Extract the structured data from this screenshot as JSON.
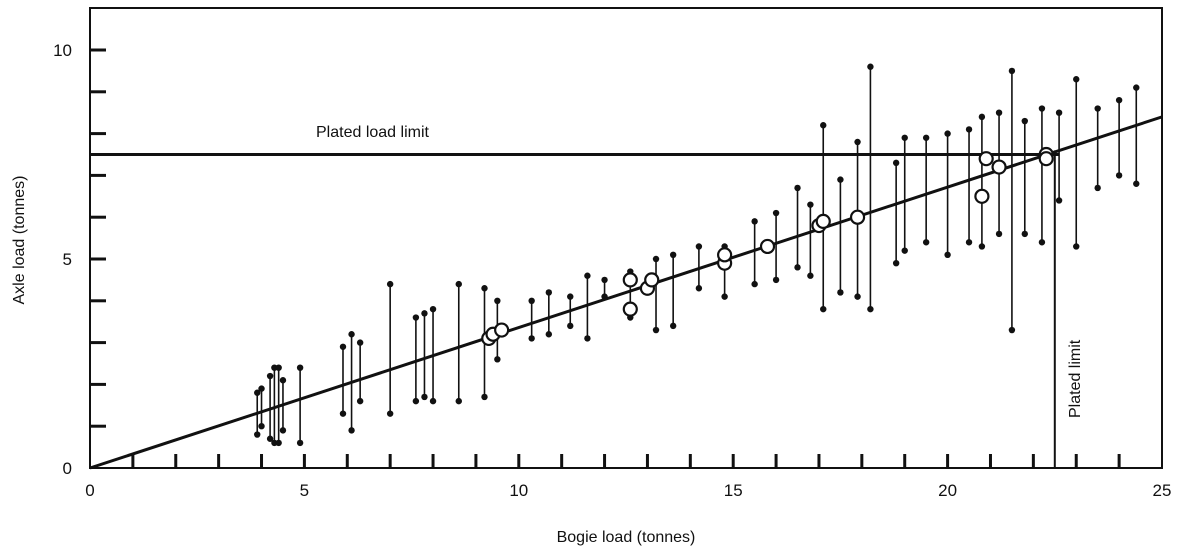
{
  "chart_data": {
    "type": "scatter",
    "title": "",
    "xlabel": "Bogie load (tonnes)",
    "ylabel": "Axle load (tonnes)",
    "xlim": [
      0,
      25
    ],
    "ylim": [
      0,
      10.5
    ],
    "x_tick_labels": [
      "0",
      "5",
      "10",
      "15",
      "20",
      "25"
    ],
    "y_tick_labels": [
      "0",
      "5",
      "10"
    ],
    "grid": false,
    "legend": "none",
    "annotations": {
      "plated_load_limit": {
        "text": "Plated load limit",
        "y": 7.5
      },
      "plated_limit": {
        "text": "Plated limit",
        "x": 22.5
      }
    },
    "trend_line": {
      "x": [
        0,
        25
      ],
      "y": [
        0,
        8.4
      ]
    },
    "series": [
      {
        "kind": "error-bars",
        "x": [
          3.9,
          4.0,
          4.2,
          4.3,
          4.4,
          4.5,
          4.9,
          5.9,
          6.1,
          6.3,
          7.0,
          7.6,
          7.8,
          8.0,
          8.6,
          9.2,
          9.5,
          10.3,
          10.7,
          11.2,
          11.6,
          12.0,
          12.6,
          13.2,
          13.6,
          14.2,
          14.8,
          15.5,
          16.0,
          16.5,
          16.8,
          17.1,
          17.5,
          17.9,
          18.2,
          18.8,
          19.0,
          19.5,
          20.0,
          20.5,
          20.8,
          21.2,
          21.5,
          21.8,
          22.2,
          22.6,
          23.0,
          23.5,
          24.0,
          24.4
        ],
        "lo": [
          0.8,
          1.0,
          0.7,
          0.6,
          0.6,
          0.9,
          0.6,
          1.3,
          0.9,
          1.6,
          1.3,
          1.6,
          1.7,
          1.6,
          1.6,
          1.7,
          2.6,
          3.1,
          3.2,
          3.4,
          3.1,
          4.1,
          3.6,
          3.3,
          3.4,
          4.3,
          4.1,
          4.4,
          4.5,
          4.8,
          4.6,
          3.8,
          4.2,
          4.1,
          3.8,
          4.9,
          5.2,
          5.4,
          5.1,
          5.4,
          5.3,
          5.6,
          3.3,
          5.6,
          5.4,
          6.4,
          5.3,
          6.7,
          7.0,
          6.8
        ],
        "hi": [
          1.8,
          1.9,
          2.2,
          2.4,
          2.4,
          2.1,
          2.4,
          2.9,
          3.2,
          3.0,
          4.4,
          3.6,
          3.7,
          3.8,
          4.4,
          4.3,
          4.0,
          4.0,
          4.2,
          4.1,
          4.6,
          4.5,
          4.7,
          5.0,
          5.1,
          5.3,
          5.3,
          5.9,
          6.1,
          6.7,
          6.3,
          8.2,
          6.9,
          7.8,
          9.6,
          7.3,
          7.9,
          7.9,
          8.0,
          8.1,
          8.4,
          8.5,
          9.5,
          8.3,
          8.6,
          8.5,
          9.3,
          8.6,
          8.8,
          9.1
        ]
      },
      {
        "kind": "points-hollow",
        "x": [
          9.3,
          9.4,
          9.6,
          12.6,
          12.6,
          13.0,
          13.1,
          14.8,
          14.8,
          15.8,
          17.0,
          17.1,
          17.9,
          20.8,
          20.9,
          21.2,
          22.3,
          22.3
        ],
        "y": [
          3.1,
          3.2,
          3.3,
          3.8,
          4.5,
          4.3,
          4.5,
          4.9,
          5.1,
          5.3,
          5.8,
          5.9,
          6.0,
          6.5,
          7.4,
          7.2,
          7.5,
          7.4
        ]
      }
    ]
  }
}
